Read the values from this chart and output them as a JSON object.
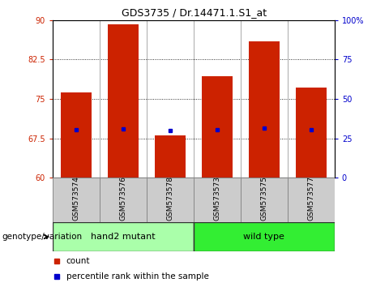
{
  "title": "GDS3735 / Dr.14471.1.S1_at",
  "samples": [
    "GSM573574",
    "GSM573576",
    "GSM573578",
    "GSM573573",
    "GSM573575",
    "GSM573577"
  ],
  "bar_bottoms": [
    60,
    60,
    60,
    60,
    60,
    60
  ],
  "bar_tops": [
    76.2,
    89.2,
    68.1,
    79.3,
    86.0,
    77.2
  ],
  "percentile_values": [
    69.2,
    69.3,
    69.0,
    69.2,
    69.4,
    69.2
  ],
  "groups": [
    {
      "label": "hand2 mutant",
      "start": 0,
      "end": 3,
      "color": "#aaffaa"
    },
    {
      "label": "wild type",
      "start": 3,
      "end": 6,
      "color": "#33ee33"
    }
  ],
  "ylim_left": [
    60,
    90
  ],
  "ylim_right": [
    0,
    100
  ],
  "yticks_left": [
    60,
    67.5,
    75,
    82.5,
    90
  ],
  "yticks_right": [
    0,
    25,
    50,
    75,
    100
  ],
  "ytick_labels_left": [
    "60",
    "67.5",
    "75",
    "82.5",
    "90"
  ],
  "ytick_labels_right": [
    "0",
    "25",
    "50",
    "75",
    "100%"
  ],
  "bar_color": "#CC2200",
  "dot_color": "#0000CC",
  "background_color": "#ffffff",
  "plot_bg_color": "#ffffff",
  "left_tick_color": "#CC2200",
  "right_tick_color": "#0000CC",
  "genotype_label": "genotype/variation",
  "legend_count_label": "count",
  "legend_percentile_label": "percentile rank within the sample",
  "label_box_color": "#cccccc",
  "label_box_edge": "#888888"
}
